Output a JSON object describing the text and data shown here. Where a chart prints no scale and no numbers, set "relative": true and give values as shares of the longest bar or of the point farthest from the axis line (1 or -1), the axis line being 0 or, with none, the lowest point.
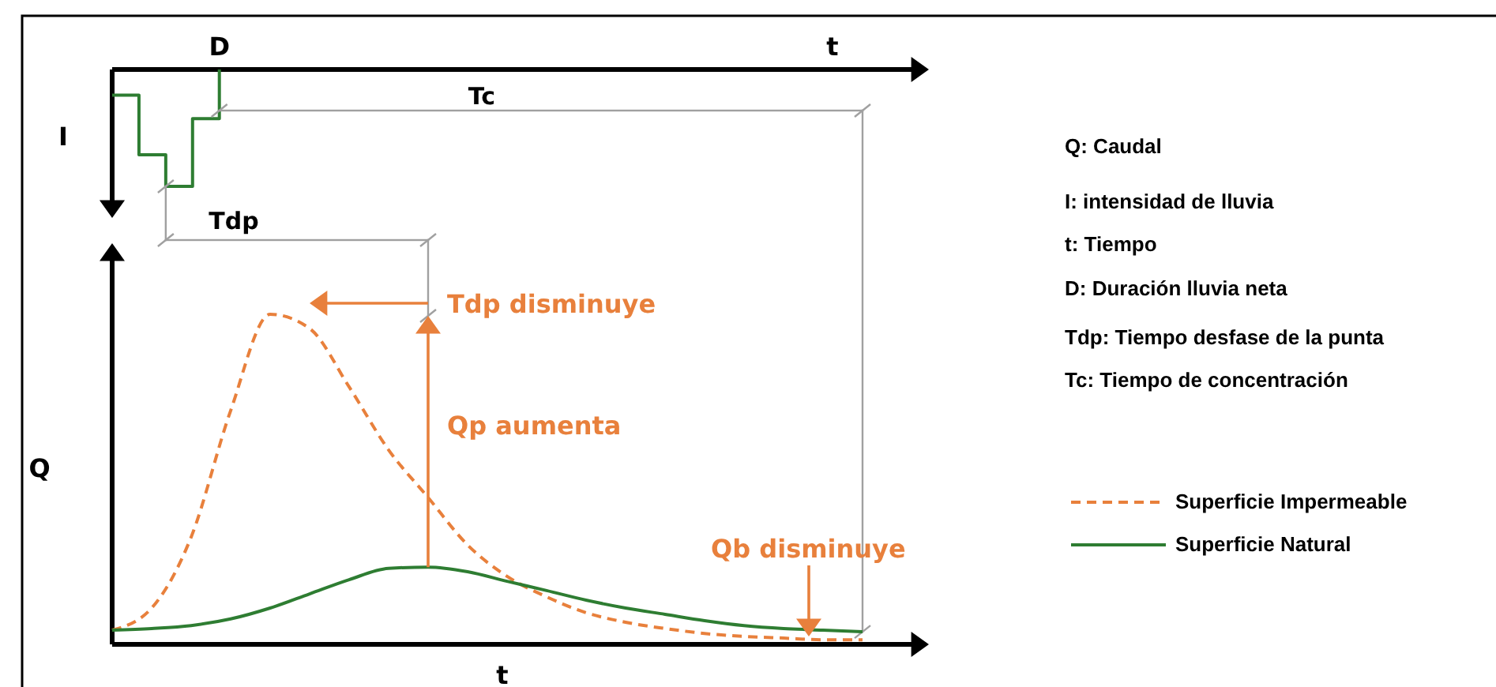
{
  "chart_data": [
    {
      "type": "step",
      "relative": true,
      "xlabel": "t",
      "ylabel": "I",
      "categories": [
        null,
        null,
        null,
        null,
        null,
        null,
        null,
        null,
        null,
        null,
        null,
        null,
        null,
        null,
        null,
        null,
        null,
        null,
        null,
        null,
        null,
        null,
        null,
        null,
        null,
        null,
        null,
        null,
        null
      ],
      "series": [
        {
          "color": "#2e7d32",
          "values": [
            -0.22,
            -0.73,
            -1,
            -0.42,
            0,
            null,
            null,
            null,
            null,
            null,
            null,
            null,
            null,
            null,
            null,
            null,
            null,
            null,
            null,
            null,
            null,
            null,
            null,
            null,
            null,
            null,
            null,
            null,
            null
          ]
        }
      ],
      "annotations": [
        "D"
      ]
    },
    {
      "type": "line",
      "relative": true,
      "xlabel": "t",
      "ylabel": "Q",
      "legend": "right",
      "categories": [
        null,
        null,
        null,
        null,
        null,
        null,
        null,
        null,
        null,
        null,
        null,
        null,
        null,
        null,
        null,
        null,
        null,
        null,
        null,
        null
      ],
      "series": [
        {
          "name": "Superficie Impermeable",
          "color": "#e8803c",
          "line_style": "dashed",
          "values": [
            0.043,
            0.11,
            0.325,
            0.708,
            1,
            0.957,
            0.78,
            0.589,
            0.445,
            0.301,
            0.206,
            0.144,
            0.096,
            0.067,
            0.048,
            0.033,
            0.024,
            0.019,
            0.014,
            0.014
          ]
        },
        {
          "name": "Superficie Natural",
          "color": "#2e7d32",
          "line_style": "solid",
          "values": [
            0.043,
            0.048,
            0.057,
            0.077,
            0.11,
            0.153,
            0.196,
            0.23,
            0.234,
            0.22,
            0.191,
            0.163,
            0.134,
            0.11,
            0.091,
            0.072,
            0.057,
            0.048,
            0.043,
            0.038
          ]
        }
      ],
      "annotations": [
        "Tc",
        "Tdp",
        "Tdp disminuye",
        "Qp aumenta",
        "Qb disminuye",
        "Q: Caudal",
        "I: intensidad de lluvia",
        "t: Tiempo",
        "D: Duración lluvia neta",
        "Tdp: Tiempo desfase de la punta",
        "Tc: Tiempo de concentración"
      ]
    }
  ]
}
